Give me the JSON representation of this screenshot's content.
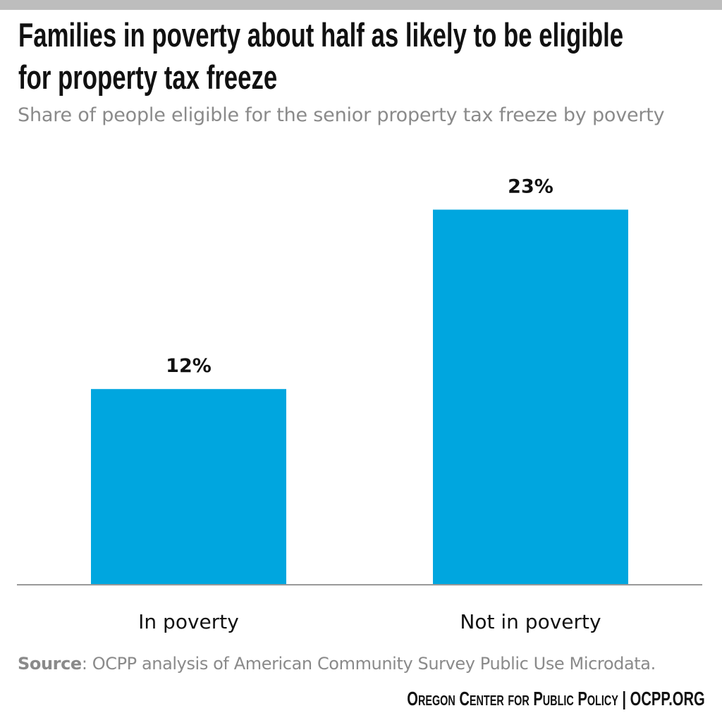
{
  "title_lines": [
    "Families in poverty about half as likely to be eligible",
    "for property tax freeze"
  ],
  "subtitle": "Share of people eligible for the senior property tax freeze by poverty",
  "source_label": "Source",
  "source_text": ": OCPP analysis of American Community Survey Public Use Microdata.",
  "footer": "Oregon Center for Public Policy | OCPP.ORG",
  "colors": {
    "bar": "#00a6df",
    "topbar": "#bdbdbd",
    "axis": "#999999"
  },
  "chart_data": {
    "type": "bar",
    "categories": [
      "In poverty",
      "Not in poverty"
    ],
    "values": [
      12,
      23
    ],
    "value_labels": [
      "12%",
      "23%"
    ],
    "title": "Families in poverty about half as likely to be eligible for property tax freeze",
    "subtitle": "Share of people eligible for the senior property tax freeze by poverty",
    "xlabel": "",
    "ylabel": "",
    "ylim": [
      0,
      25
    ],
    "grid": false,
    "legend": "none"
  }
}
